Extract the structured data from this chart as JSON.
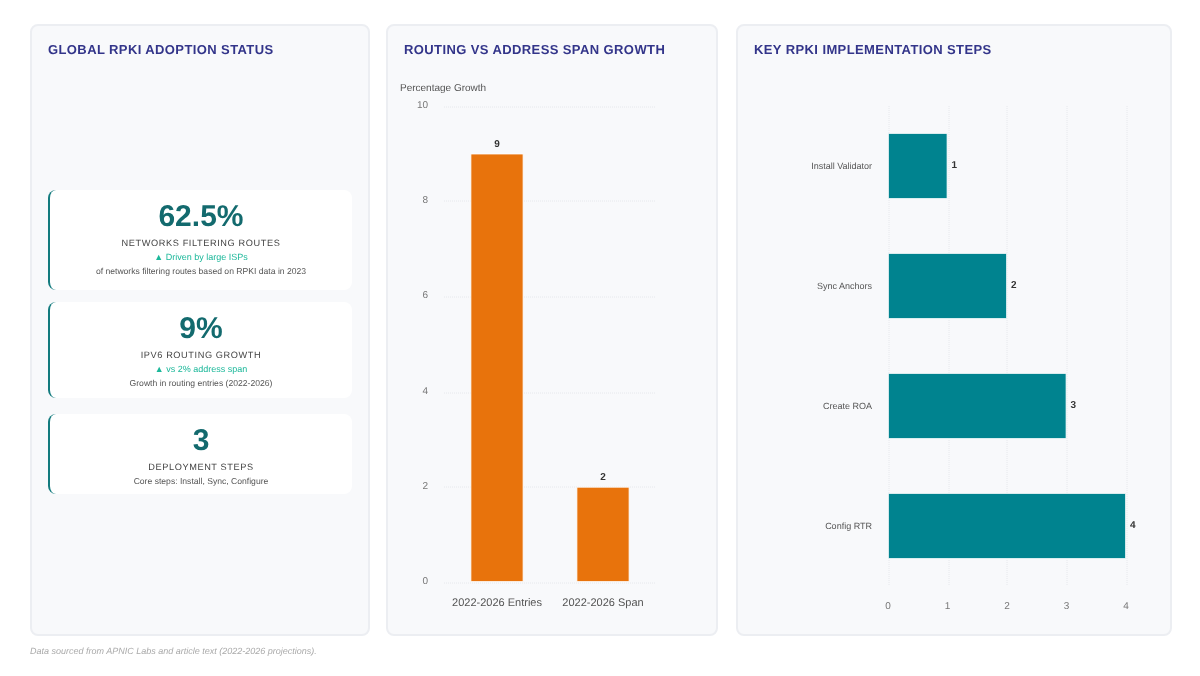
{
  "chart_data": [
    {
      "type": "other",
      "title": "GLOBAL RPKI ADOPTION STATUS",
      "annotations": [
        "62.5%",
        "NETWORKS FILTERING ROUTES",
        "▲ Driven by large ISPs",
        "of networks filtering routes based on RPKI data in 2023",
        "9%",
        "IPV6 ROUTING GROWTH",
        "▲ vs 2% address span",
        "Growth in routing entries (2022-2026)",
        "3",
        "DEPLOYMENT STEPS",
        "Core steps: Install, Sync, Configure",
        "Data sourced from APNIC Labs and article text (2022-2026 projections)."
      ]
    },
    {
      "type": "bar",
      "title": "ROUTING VS ADDRESS SPAN GROWTH",
      "ylabel": "Percentage Growth",
      "categories": [
        "2022-2026 Entries",
        "2022-2026 Span"
      ],
      "values": [
        9,
        2
      ],
      "color": "#e8730c",
      "ylim": [
        0,
        10
      ],
      "yticks": [
        0,
        2,
        4,
        6,
        8,
        10
      ],
      "grid": "y",
      "data_labels": true
    },
    {
      "type": "bar",
      "title": "KEY RPKI IMPLEMENTATION STEPS",
      "orientation": "horizontal",
      "categories": [
        "Install Validator",
        "Sync Anchors",
        "Create ROA",
        "Config RTR"
      ],
      "values": [
        1,
        2,
        3,
        4
      ],
      "color": "#00838f",
      "xlim": [
        0,
        4
      ],
      "xticks": [
        0,
        1,
        2,
        3,
        4
      ],
      "grid": "x",
      "data_labels": true
    }
  ]
}
